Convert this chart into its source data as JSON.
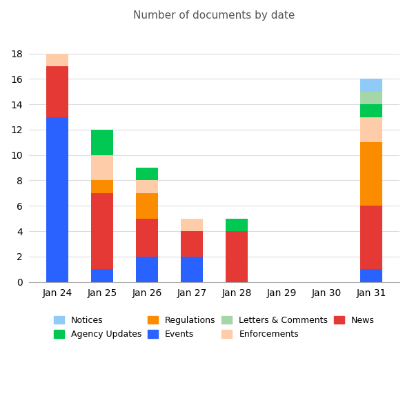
{
  "title": "Number of documents by date",
  "dates": [
    "Jan 24",
    "Jan 25",
    "Jan 26",
    "Jan 27",
    "Jan 28",
    "Jan 29",
    "Jan 30",
    "Jan 31"
  ],
  "colors": {
    "Events": "#2962FF",
    "News": "#E53935",
    "Regulations": "#FB8C00",
    "Enforcements": "#FFCCAA",
    "Agency Updates": "#00C853",
    "Letters & Comments": "#A5D6A7",
    "Notices": "#90CAF9"
  },
  "data": {
    "Events": [
      13,
      1,
      2,
      2,
      0,
      0,
      0,
      1
    ],
    "News": [
      4,
      6,
      3,
      2,
      4,
      0,
      0,
      5
    ],
    "Regulations": [
      0,
      1,
      2,
      0,
      0,
      0,
      0,
      5
    ],
    "Enforcements": [
      1,
      2,
      1,
      1,
      0,
      0,
      0,
      2
    ],
    "Agency Updates": [
      0,
      2,
      1,
      0,
      1,
      0,
      0,
      1
    ],
    "Letters & Comments": [
      0,
      0,
      0,
      0,
      0,
      0,
      0,
      1
    ],
    "Notices": [
      0,
      0,
      0,
      0,
      0,
      0,
      0,
      1
    ]
  },
  "stack_order": [
    "Events",
    "News",
    "Regulations",
    "Enforcements",
    "Agency Updates",
    "Letters & Comments",
    "Notices"
  ],
  "legend_row1": [
    "Notices",
    "Agency Updates",
    "Regulations",
    "Events"
  ],
  "legend_row2": [
    "Letters & Comments",
    "Enforcements",
    "News"
  ],
  "ylim": [
    0,
    20
  ],
  "yticks": [
    0,
    2,
    4,
    6,
    8,
    10,
    12,
    14,
    16,
    18
  ],
  "bar_width": 0.5,
  "title_fontsize": 11,
  "title_color": "#555555",
  "background_color": "#FFFFFF",
  "grid_color": "#DDDDDD",
  "spine_color": "#AAAAAA"
}
